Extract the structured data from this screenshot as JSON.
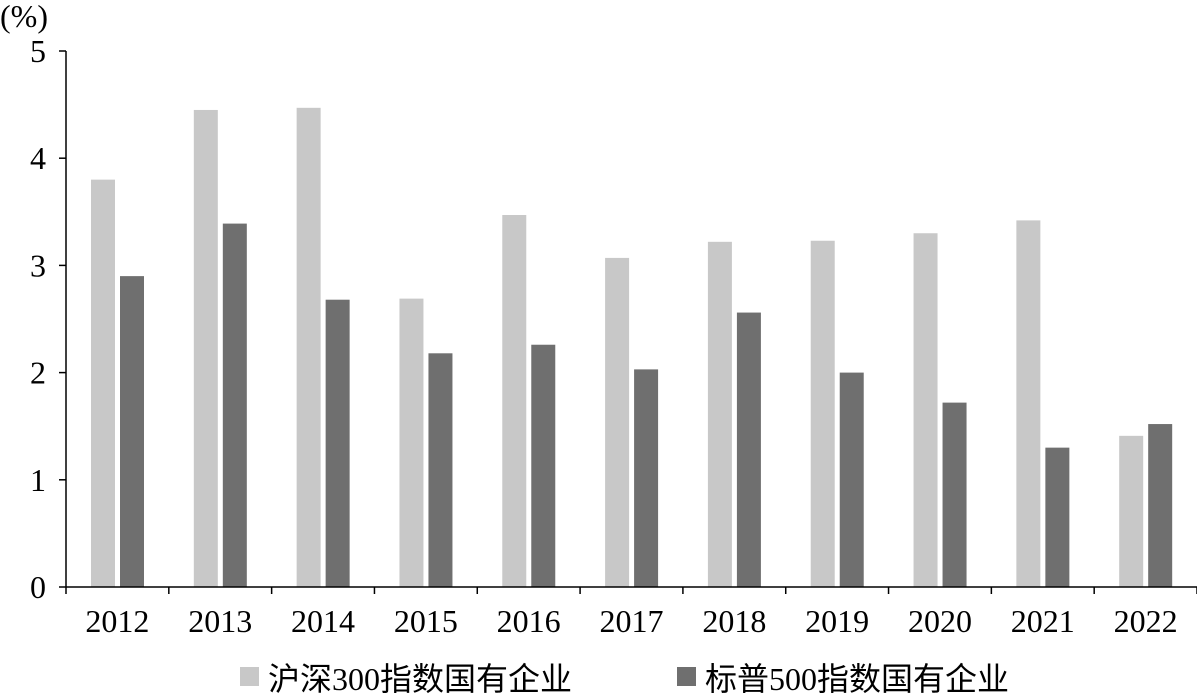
{
  "chart_data": {
    "type": "bar",
    "unit_label": "(%)",
    "categories": [
      "2012",
      "2013",
      "2014",
      "2015",
      "2016",
      "2017",
      "2018",
      "2019",
      "2020",
      "2021",
      "2022"
    ],
    "series": [
      {
        "name": "沪深300指数国有企业",
        "color": "#c8c8c8",
        "values": [
          3.8,
          4.45,
          4.47,
          2.69,
          3.47,
          3.07,
          3.22,
          3.23,
          3.3,
          3.42,
          1.41
        ]
      },
      {
        "name": "标普500指数国有企业",
        "color": "#6f6f6f",
        "values": [
          2.9,
          3.39,
          2.68,
          2.18,
          2.26,
          2.03,
          2.56,
          2.0,
          1.72,
          1.3,
          1.52
        ]
      }
    ],
    "ylim": [
      0,
      5
    ],
    "yticks": [
      0,
      1,
      2,
      3,
      4,
      5
    ],
    "grid": false,
    "legend_position": "bottom"
  }
}
